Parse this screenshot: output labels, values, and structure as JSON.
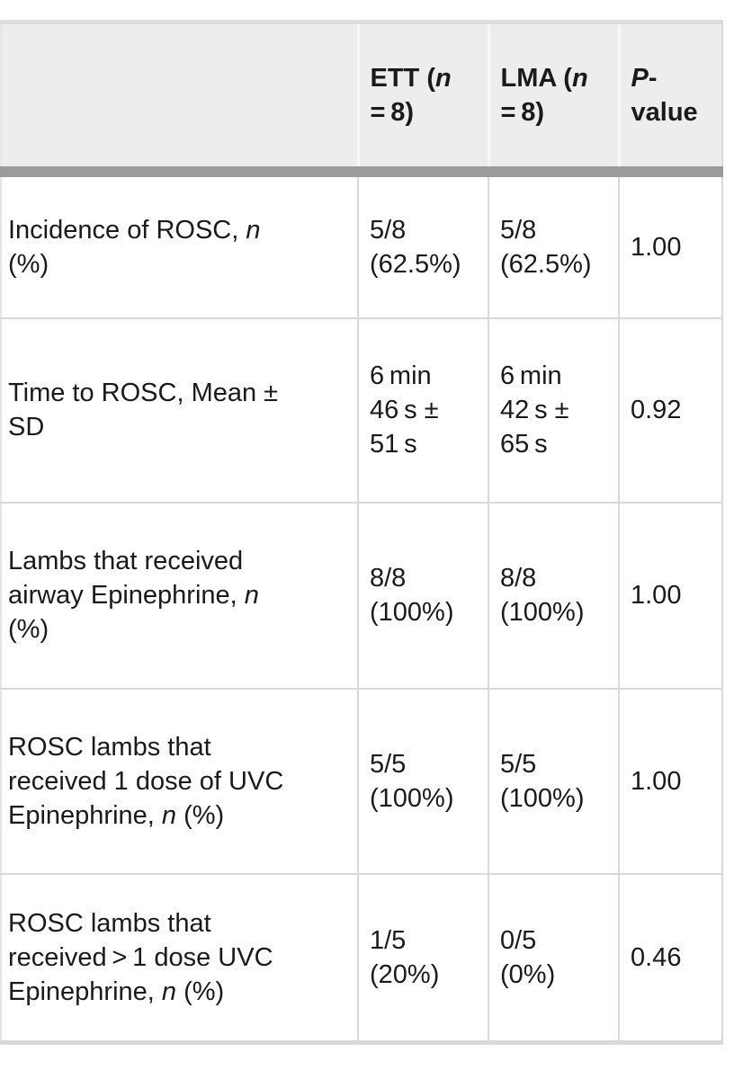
{
  "colors": {
    "page_bg": "#ffffff",
    "header_bg": "#ededed",
    "header_rule": "#9b9b9b",
    "grid": "#d9d9d9",
    "header_sep": "#f7f7f7",
    "text": "#1a1a1a",
    "table_top": "#dcdcdc"
  },
  "table": {
    "columns": [
      {
        "header": ""
      },
      {
        "header": "ETT (*n*\n= 8)"
      },
      {
        "header": "LMA (*n*\n= 8)"
      },
      {
        "header": "*P*-\nvalue"
      }
    ],
    "rows": [
      {
        "cells": [
          "Incidence of ROSC, *n*\n(%)",
          "5/8\n(62.5%)",
          "5/8\n(62.5%)",
          "1.00"
        ]
      },
      {
        "cells": [
          "Time to ROSC, Mean ±\nSD",
          "6 min\n46 s ±\n51 s",
          "6 min\n42 s ±\n65 s",
          "0.92"
        ]
      },
      {
        "cells": [
          "Lambs that received\nairway Epinephrine, *n*\n(%)",
          "8/8\n(100%)",
          "8/8\n(100%)",
          "1.00"
        ]
      },
      {
        "cells": [
          "ROSC lambs that\nreceived 1 dose of UVC\nEpinephrine, *n* (%)",
          "5/5\n(100%)",
          "5/5\n(100%)",
          "1.00"
        ]
      },
      {
        "cells": [
          "ROSC lambs that\nreceived > 1 dose UVC\nEpinephrine, *n* (%)",
          "1/5\n(20%)",
          "0/5\n(0%)",
          "0.46"
        ]
      }
    ]
  }
}
